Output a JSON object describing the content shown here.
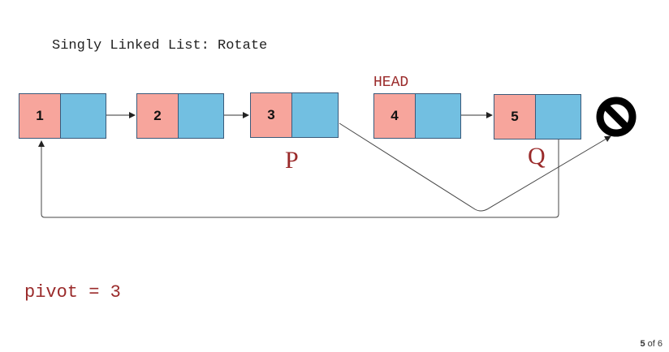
{
  "title": "Singly Linked List: Rotate",
  "nodes": [
    {
      "value": "1"
    },
    {
      "value": "2"
    },
    {
      "value": "3"
    },
    {
      "value": "4"
    },
    {
      "value": "5"
    }
  ],
  "labels": {
    "head": "HEAD",
    "p": "P",
    "q": "Q"
  },
  "pivot_text": "pivot = 3",
  "null_icon": "null-no-entry-icon",
  "pager": {
    "current": "5",
    "of_text": "of 6"
  },
  "colors": {
    "value_cell": "#f7a59c",
    "pointer_cell": "#72bfe1",
    "label_text": "#9a2a2a"
  }
}
